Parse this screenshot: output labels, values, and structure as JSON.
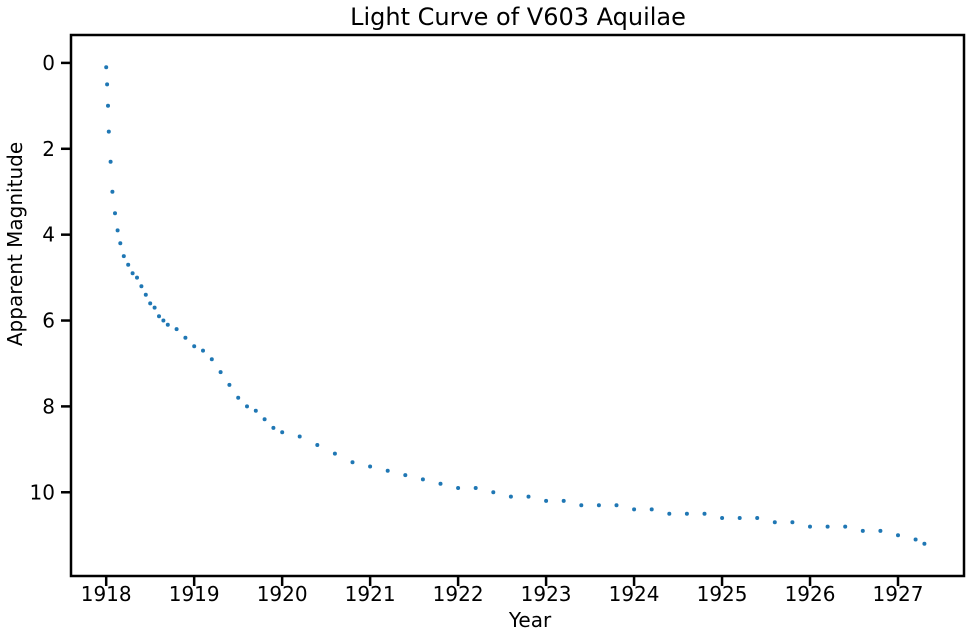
{
  "chart_data": {
    "type": "scatter",
    "title": "Light Curve of V603 Aquilae",
    "xlabel": "Year",
    "ylabel": "Apparent Magnitude",
    "xlim": [
      1917.6,
      1927.75
    ],
    "ylim": [
      11.95,
      -0.65
    ],
    "y_inverted": true,
    "grid": false,
    "xticks": [
      1918,
      1919,
      1920,
      1921,
      1922,
      1923,
      1924,
      1925,
      1926,
      1927
    ],
    "yticks": [
      0,
      2,
      4,
      6,
      8,
      10
    ],
    "series": [
      {
        "color": "#1f77b4",
        "x": [
          1918.0,
          1918.01,
          1918.02,
          1918.03,
          1918.05,
          1918.07,
          1918.1,
          1918.13,
          1918.16,
          1918.2,
          1918.25,
          1918.3,
          1918.35,
          1918.4,
          1918.45,
          1918.5,
          1918.55,
          1918.6,
          1918.65,
          1918.7,
          1918.8,
          1918.9,
          1919.0,
          1919.1,
          1919.2,
          1919.3,
          1919.4,
          1919.5,
          1919.6,
          1919.7,
          1919.8,
          1919.9,
          1920.0,
          1920.2,
          1920.4,
          1920.6,
          1920.8,
          1921.0,
          1921.2,
          1921.4,
          1921.6,
          1921.8,
          1922.0,
          1922.2,
          1922.4,
          1922.6,
          1922.8,
          1923.0,
          1923.2,
          1923.4,
          1923.6,
          1923.8,
          1924.0,
          1924.2,
          1924.4,
          1924.6,
          1924.8,
          1925.0,
          1925.2,
          1925.4,
          1925.6,
          1925.8,
          1926.0,
          1926.2,
          1926.4,
          1926.6,
          1926.8,
          1927.0,
          1927.2,
          1927.3
        ],
        "y": [
          0.1,
          0.5,
          1.0,
          1.6,
          2.3,
          3.0,
          3.5,
          3.9,
          4.2,
          4.5,
          4.7,
          4.9,
          5.0,
          5.2,
          5.4,
          5.6,
          5.7,
          5.9,
          6.0,
          6.1,
          6.2,
          6.4,
          6.6,
          6.7,
          6.9,
          7.2,
          7.5,
          7.8,
          8.0,
          8.1,
          8.3,
          8.5,
          8.6,
          8.7,
          8.9,
          9.1,
          9.3,
          9.4,
          9.5,
          9.6,
          9.7,
          9.8,
          9.9,
          9.9,
          10.0,
          10.1,
          10.1,
          10.2,
          10.2,
          10.3,
          10.3,
          10.3,
          10.4,
          10.4,
          10.5,
          10.5,
          10.5,
          10.6,
          10.6,
          10.6,
          10.7,
          10.7,
          10.8,
          10.8,
          10.8,
          10.9,
          10.9,
          11.0,
          11.1,
          11.2
        ]
      }
    ]
  }
}
